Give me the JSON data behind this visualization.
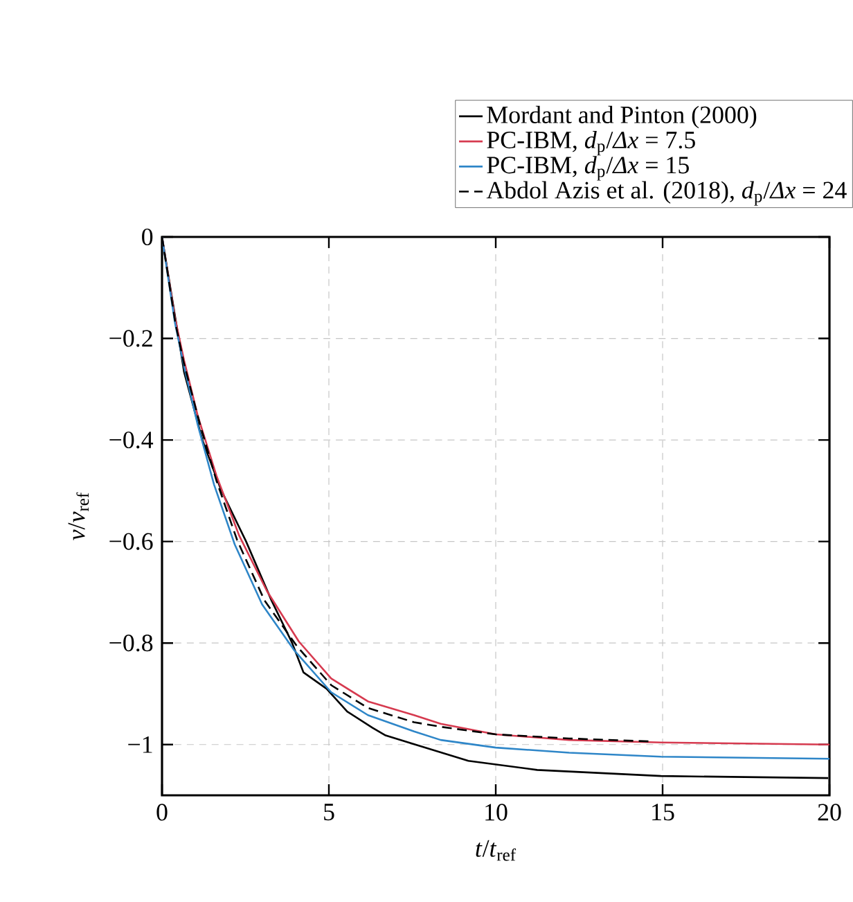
{
  "chart_data": {
    "type": "line",
    "xlabel": "*t*/*t*$_{ref}$",
    "ylabel": "*v*/*v*$_{ref}$",
    "xlim": [
      0,
      20
    ],
    "ylim": [
      -1.1,
      0
    ],
    "xticks": [
      0,
      5,
      10,
      15,
      20
    ],
    "yticks": [
      {
        "value": -1,
        "label": "−1"
      },
      {
        "value": -0.8,
        "label": "−0.8"
      },
      {
        "value": -0.6,
        "label": "−0.6"
      },
      {
        "value": -0.4,
        "label": "−0.4"
      },
      {
        "value": -0.2,
        "label": "−0.2"
      },
      0
    ],
    "grid": true,
    "legend": "top right",
    "series": [
      {
        "name": "Mordant and Pinton (2000)",
        "color": "#000000",
        "line_style": "solid",
        "x": [
          0,
          0.5,
          0.66,
          1.21,
          1.76,
          2.52,
          3.28,
          3.9,
          4.24,
          4.93,
          5.55,
          6.31,
          6.7,
          7.59,
          9.18,
          11.24,
          14.95,
          19.96
        ],
        "values": [
          0,
          -0.2,
          -0.266,
          -0.4,
          -0.497,
          -0.6,
          -0.716,
          -0.8,
          -0.858,
          -0.89,
          -0.935,
          -0.967,
          -0.982,
          -1.0,
          -1.032,
          -1.05,
          -1.062,
          -1.066
        ]
      },
      {
        "name": "PC-IBM, *d*$_{p}$/*Δx* = 7.5",
        "color": "#d63a4f",
        "line_style": "solid",
        "x": [
          0,
          0.39,
          0.66,
          1.07,
          1.63,
          2.31,
          3.14,
          4.1,
          5.07,
          6.17,
          7.55,
          8.35,
          10,
          12.2,
          14.95,
          20
        ],
        "values": [
          0,
          -0.16,
          -0.243,
          -0.352,
          -0.47,
          -0.588,
          -0.697,
          -0.797,
          -0.87,
          -0.915,
          -0.942,
          -0.959,
          -0.98,
          -0.991,
          -0.996,
          -1.0
        ]
      },
      {
        "name": "PC-IBM, *d*$_{p}$/*Δx* = 15",
        "color": "#2e86c8",
        "line_style": "solid",
        "x": [
          0,
          0.39,
          0.66,
          1.07,
          1.56,
          2.18,
          3.0,
          3.97,
          5.07,
          6.17,
          7.55,
          8.35,
          10,
          12.2,
          14.95,
          20
        ],
        "values": [
          0,
          -0.17,
          -0.255,
          -0.37,
          -0.488,
          -0.606,
          -0.724,
          -0.815,
          -0.897,
          -0.942,
          -0.974,
          -0.991,
          -1.006,
          -1.016,
          -1.024,
          -1.028
        ]
      },
      {
        "name": "Abdol Azis et al. (2018), *d*$_{p}$/*Δx* = 24",
        "color": "#000000",
        "line_style": "dashed",
        "x": [
          0,
          0.4,
          0.66,
          1.14,
          1.63,
          2.25,
          3.07,
          4.04,
          5.07,
          6.17,
          7.55,
          8.35,
          10,
          12.2,
          14.67
        ],
        "values": [
          0,
          -0.17,
          -0.25,
          -0.37,
          -0.48,
          -0.597,
          -0.716,
          -0.806,
          -0.883,
          -0.928,
          -0.956,
          -0.965,
          -0.98,
          -0.988,
          -0.994
        ]
      }
    ]
  }
}
